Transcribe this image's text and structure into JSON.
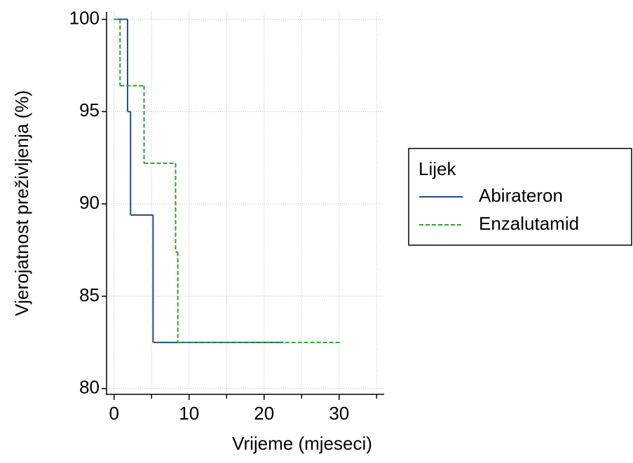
{
  "chart_data": {
    "type": "step",
    "x_label": "Vrijeme (mjeseci)",
    "y_label": "Vjerojatnost preživljenja (%)",
    "xlim": [
      -1,
      36
    ],
    "xticks": [
      0,
      10,
      20,
      30
    ],
    "xminor": [
      5,
      15,
      25,
      35
    ],
    "ylim": [
      79.8,
      100.4
    ],
    "yticks": [
      80,
      85,
      90,
      95,
      100
    ],
    "grid": true,
    "legend_title": "Lijek",
    "legend": "right",
    "series": [
      {
        "name": "Abirateron",
        "color": "#1f4e89",
        "dash": false,
        "x": [
          0,
          1.8,
          2.2,
          5.2,
          22.6
        ],
        "values": [
          100,
          95,
          89.4,
          82.5,
          82.5
        ]
      },
      {
        "name": "Enzalutamid",
        "color": "#2ca02c",
        "dash": true,
        "x": [
          0,
          0.8,
          4,
          8.2,
          8.5,
          30.2
        ],
        "values": [
          100,
          96.4,
          92.2,
          87.4,
          82.5,
          82.5
        ]
      }
    ]
  }
}
